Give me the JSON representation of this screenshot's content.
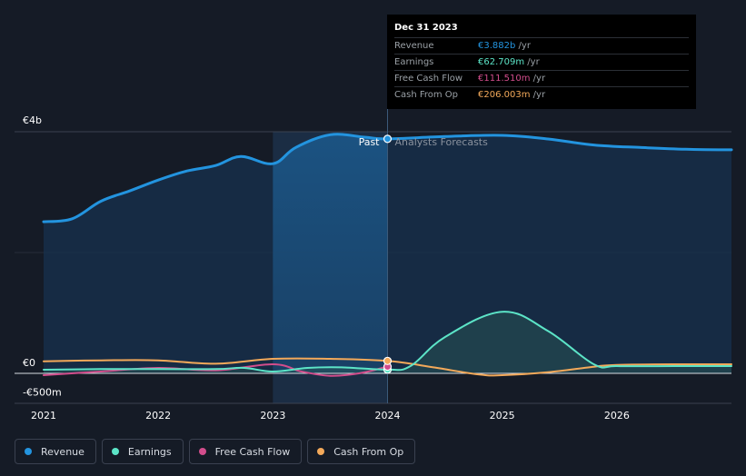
{
  "chart_data": {
    "type": "area",
    "title": "",
    "xlabel": "",
    "ylabel": "",
    "x_ticks": [
      "2021",
      "2022",
      "2023",
      "2024",
      "2025",
      "2026"
    ],
    "y_ticks": [
      "€4b",
      "€0",
      "-€500m"
    ],
    "ylim": [
      -500,
      4000
    ],
    "divider_label_past": "Past",
    "divider_label_forecast": "Analysts Forecasts",
    "series": [
      {
        "name": "Revenue",
        "color": "#2394df",
        "points": [
          [
            2021.0,
            2510
          ],
          [
            2021.25,
            2560
          ],
          [
            2021.5,
            2850
          ],
          [
            2021.75,
            3020
          ],
          [
            2022.0,
            3200
          ],
          [
            2022.25,
            3350
          ],
          [
            2022.5,
            3440
          ],
          [
            2022.72,
            3590
          ],
          [
            2023.0,
            3470
          ],
          [
            2023.2,
            3740
          ],
          [
            2023.5,
            3950
          ],
          [
            2023.8,
            3910
          ],
          [
            2024.0,
            3882
          ],
          [
            2024.5,
            3920
          ],
          [
            2025.0,
            3940
          ],
          [
            2025.4,
            3880
          ],
          [
            2025.8,
            3780
          ],
          [
            2026.2,
            3740
          ],
          [
            2026.6,
            3710
          ],
          [
            2027.0,
            3700
          ]
        ]
      },
      {
        "name": "Earnings",
        "color": "#5ce4c7",
        "points": [
          [
            2021.0,
            60
          ],
          [
            2021.5,
            70
          ],
          [
            2022.0,
            70
          ],
          [
            2022.5,
            70
          ],
          [
            2022.75,
            90
          ],
          [
            2023.0,
            30
          ],
          [
            2023.3,
            90
          ],
          [
            2023.6,
            100
          ],
          [
            2024.0,
            62.709
          ],
          [
            2024.2,
            120
          ],
          [
            2024.5,
            600
          ],
          [
            2025.0,
            1020
          ],
          [
            2025.4,
            700
          ],
          [
            2025.8,
            150
          ],
          [
            2026.0,
            120
          ],
          [
            2026.5,
            120
          ],
          [
            2027.0,
            120
          ]
        ]
      },
      {
        "name": "Free Cash Flow",
        "color": "#d24d8c",
        "points": [
          [
            2021.0,
            -30
          ],
          [
            2021.5,
            30
          ],
          [
            2022.0,
            90
          ],
          [
            2022.5,
            50
          ],
          [
            2023.0,
            150
          ],
          [
            2023.25,
            30
          ],
          [
            2023.5,
            -40
          ],
          [
            2023.75,
            0
          ],
          [
            2024.0,
            111.51
          ]
        ]
      },
      {
        "name": "Cash From Op",
        "color": "#f3a95a",
        "points": [
          [
            2021.0,
            200
          ],
          [
            2021.5,
            215
          ],
          [
            2022.0,
            215
          ],
          [
            2022.5,
            160
          ],
          [
            2023.0,
            240
          ],
          [
            2023.5,
            240
          ],
          [
            2024.0,
            206.003
          ],
          [
            2024.4,
            100
          ],
          [
            2024.8,
            -20
          ],
          [
            2025.0,
            -30
          ],
          [
            2025.4,
            20
          ],
          [
            2025.8,
            110
          ],
          [
            2026.0,
            140
          ],
          [
            2026.5,
            150
          ],
          [
            2027.0,
            150
          ]
        ]
      }
    ],
    "legend_position": "bottom-left",
    "past_region_start": 2023.0,
    "present": 2024.0
  },
  "tooltip": {
    "date": "Dec 31 2023",
    "rows": [
      {
        "label": "Revenue",
        "value": "€3.882b",
        "unit": "/yr",
        "color": "#2394df"
      },
      {
        "label": "Earnings",
        "value": "€62.709m",
        "unit": "/yr",
        "color": "#5ce4c7"
      },
      {
        "label": "Free Cash Flow",
        "value": "€111.510m",
        "unit": "/yr",
        "color": "#d24d8c"
      },
      {
        "label": "Cash From Op",
        "value": "€206.003m",
        "unit": "/yr",
        "color": "#f3a95a"
      }
    ]
  },
  "legend": [
    {
      "label": "Revenue",
      "color": "#2394df"
    },
    {
      "label": "Earnings",
      "color": "#5ce4c7"
    },
    {
      "label": "Free Cash Flow",
      "color": "#d24d8c"
    },
    {
      "label": "Cash From Op",
      "color": "#f3a95a"
    }
  ]
}
